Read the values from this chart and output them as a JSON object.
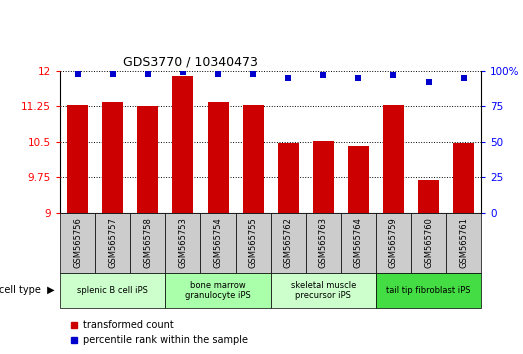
{
  "title": "GDS3770 / 10340473",
  "samples": [
    "GSM565756",
    "GSM565757",
    "GSM565758",
    "GSM565753",
    "GSM565754",
    "GSM565755",
    "GSM565762",
    "GSM565763",
    "GSM565764",
    "GSM565759",
    "GSM565760",
    "GSM565761"
  ],
  "red_values": [
    11.28,
    11.35,
    11.26,
    11.9,
    11.35,
    11.28,
    10.47,
    10.52,
    10.4,
    11.27,
    9.68,
    10.47
  ],
  "blue_values": [
    98,
    98,
    98,
    99,
    98,
    98,
    95,
    97,
    95,
    97,
    92,
    95
  ],
  "cell_types": [
    {
      "label": "splenic B cell iPS",
      "start": 0,
      "end": 3,
      "color": "#ccffcc"
    },
    {
      "label": "bone marrow\ngranulocyte iPS",
      "start": 3,
      "end": 6,
      "color": "#aaffaa"
    },
    {
      "label": "skeletal muscle\nprecursor iPS",
      "start": 6,
      "end": 9,
      "color": "#ccffcc"
    },
    {
      "label": "tail tip fibroblast iPS",
      "start": 9,
      "end": 12,
      "color": "#44dd44"
    }
  ],
  "ylim_left": [
    9,
    12
  ],
  "ylim_right": [
    0,
    100
  ],
  "yticks_left": [
    9,
    9.75,
    10.5,
    11.25,
    12
  ],
  "yticks_right": [
    0,
    25,
    50,
    75,
    100
  ],
  "bar_color": "#cc0000",
  "dot_color": "#0000cc",
  "legend_red": "transformed count",
  "legend_blue": "percentile rank within the sample",
  "sample_box_color": "#cccccc",
  "bar_width": 0.6
}
